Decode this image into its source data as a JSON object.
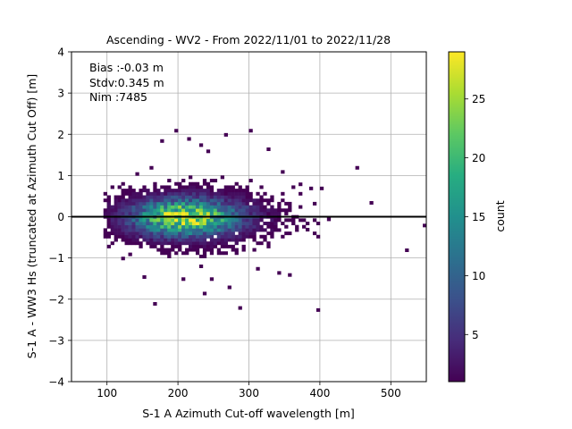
{
  "chart_data": {
    "type": "heatmap",
    "title": "Ascending - WV2 - From 2022/11/01 to 2022/11/28",
    "xlabel": "S-1 A Azimuth Cut-off wavelength [m]",
    "ylabel": "S-1 A - WW3 Hs (truncated at Azimuth Cut Off) [m]",
    "xlim": [
      50,
      550
    ],
    "ylim": [
      -4,
      4
    ],
    "xticks": [
      100,
      200,
      300,
      400,
      500
    ],
    "yticks": [
      -4,
      -3,
      -2,
      -1,
      0,
      1,
      2,
      3,
      4
    ],
    "grid": true,
    "annotations": [
      "Bias :-0.03 m",
      "Stdv:0.345 m",
      "Nim :7485"
    ],
    "reference_line_y": 0,
    "colormap": "viridis",
    "colorbar": {
      "label": "count",
      "min": 1,
      "max": 29,
      "ticks": [
        5,
        10,
        15,
        20,
        25
      ]
    },
    "density_model": {
      "center_x": 205,
      "center_y": -0.05,
      "sigma_x": 48,
      "sigma_y": 0.3,
      "peak_count": 28,
      "bin_width_x": 5,
      "bin_height_y": 0.08,
      "x_extent": [
        95,
        420
      ],
      "y_extent": [
        -1.4,
        1.2
      ]
    },
    "outliers": [
      {
        "x": 470,
        "y": 0.3
      },
      {
        "x": 450,
        "y": 1.15
      },
      {
        "x": 545,
        "y": -0.25
      },
      {
        "x": 520,
        "y": -0.85
      },
      {
        "x": 395,
        "y": -2.3
      },
      {
        "x": 285,
        "y": -2.25
      },
      {
        "x": 165,
        "y": -2.15
      },
      {
        "x": 235,
        "y": -1.9
      },
      {
        "x": 245,
        "y": -1.55
      },
      {
        "x": 270,
        "y": -1.75
      },
      {
        "x": 340,
        "y": -1.4
      },
      {
        "x": 355,
        "y": -1.45
      },
      {
        "x": 195,
        "y": 2.05
      },
      {
        "x": 265,
        "y": 1.95
      },
      {
        "x": 230,
        "y": 1.7
      },
      {
        "x": 300,
        "y": 2.05
      },
      {
        "x": 325,
        "y": 1.6
      },
      {
        "x": 240,
        "y": 1.55
      },
      {
        "x": 175,
        "y": 1.8
      },
      {
        "x": 213,
        "y": 1.85
      },
      {
        "x": 370,
        "y": 0.75
      },
      {
        "x": 385,
        "y": 0.65
      },
      {
        "x": 400,
        "y": 0.65
      },
      {
        "x": 345,
        "y": 1.05
      },
      {
        "x": 140,
        "y": 1.0
      },
      {
        "x": 160,
        "y": 1.15
      },
      {
        "x": 120,
        "y": -1.05
      },
      {
        "x": 130,
        "y": -0.95
      },
      {
        "x": 150,
        "y": -1.5
      },
      {
        "x": 205,
        "y": -1.55
      },
      {
        "x": 310,
        "y": -1.3
      },
      {
        "x": 380,
        "y": -0.35
      },
      {
        "x": 410,
        "y": -0.1
      }
    ]
  }
}
